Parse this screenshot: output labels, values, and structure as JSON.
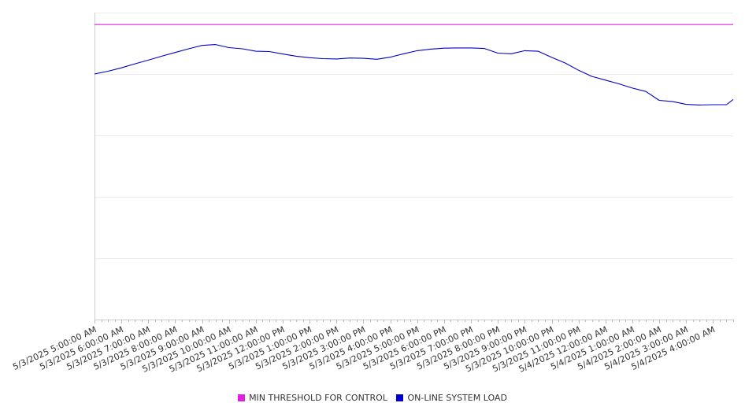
{
  "chart_data": {
    "type": "line",
    "x_unit": "hour",
    "x_range": [
      "5/3/2025 5:00:00 AM",
      "5/4/2025 4:45:00 AM"
    ],
    "xtick_labels": [
      "5/3/2025 5:00:00 AM",
      "5/3/2025 6:00:00 AM",
      "5/3/2025 7:00:00 AM",
      "5/3/2025 8:00:00 AM",
      "5/3/2025 9:00:00 AM",
      "5/3/2025 10:00:00 AM",
      "5/3/2025 11:00:00 AM",
      "5/3/2025 12:00:00 PM",
      "5/3/2025 1:00:00 PM",
      "5/3/2025 2:00:00 PM",
      "5/3/2025 3:00:00 PM",
      "5/3/2025 4:00:00 PM",
      "5/3/2025 5:00:00 PM",
      "5/3/2025 6:00:00 PM",
      "5/3/2025 7:00:00 PM",
      "5/3/2025 8:00:00 PM",
      "5/3/2025 9:00:00 PM",
      "5/3/2025 10:00:00 PM",
      "5/3/2025 11:00:00 PM",
      "5/4/2025 12:00:00 AM",
      "5/4/2025 1:00:00 AM",
      "5/4/2025 2:00:00 AM",
      "5/4/2025 3:00:00 AM",
      "5/4/2025 4:00:00 AM"
    ],
    "ylim": [
      0,
      1000
    ],
    "y_gridlines": [
      200,
      400,
      600,
      800,
      1000
    ],
    "y_tick_labels_visible": false,
    "grid": true,
    "legend_position": "bottom-center",
    "series": [
      {
        "name": "MIN THRESHOLD FOR CONTROL",
        "color": "#e020e0",
        "x": [
          "5/3/2025 5:00:00 AM",
          "5/4/2025 4:45:00 AM"
        ],
        "values": [
          961,
          961
        ]
      },
      {
        "name": "ON-LINE SYSTEM LOAD",
        "color": "#0000cc",
        "x": [
          "5/3/2025 5:00:00 AM",
          "5/3/2025 5:30:00 AM",
          "5/3/2025 6:00:00 AM",
          "5/3/2025 6:30:00 AM",
          "5/3/2025 7:00:00 AM",
          "5/3/2025 7:30:00 AM",
          "5/3/2025 8:00:00 AM",
          "5/3/2025 8:30:00 AM",
          "5/3/2025 9:00:00 AM",
          "5/3/2025 9:30:00 AM",
          "5/3/2025 10:00:00 AM",
          "5/3/2025 10:30:00 AM",
          "5/3/2025 11:00:00 AM",
          "5/3/2025 11:30:00 AM",
          "5/3/2025 12:00:00 PM",
          "5/3/2025 12:30:00 PM",
          "5/3/2025 1:00:00 PM",
          "5/3/2025 1:30:00 PM",
          "5/3/2025 2:00:00 PM",
          "5/3/2025 2:30:00 PM",
          "5/3/2025 3:00:00 PM",
          "5/3/2025 3:30:00 PM",
          "5/3/2025 4:00:00 PM",
          "5/3/2025 4:30:00 PM",
          "5/3/2025 5:00:00 PM",
          "5/3/2025 5:30:00 PM",
          "5/3/2025 6:00:00 PM",
          "5/3/2025 6:30:00 PM",
          "5/3/2025 7:00:00 PM",
          "5/3/2025 7:30:00 PM",
          "5/3/2025 8:00:00 PM",
          "5/3/2025 8:30:00 PM",
          "5/3/2025 9:00:00 PM",
          "5/3/2025 9:30:00 PM",
          "5/3/2025 10:00:00 PM",
          "5/3/2025 10:30:00 PM",
          "5/3/2025 11:00:00 PM",
          "5/3/2025 11:30:00 PM",
          "5/4/2025 12:00:00 AM",
          "5/4/2025 12:30:00 AM",
          "5/4/2025 1:00:00 AM",
          "5/4/2025 1:30:00 AM",
          "5/4/2025 2:00:00 AM",
          "5/4/2025 2:30:00 AM",
          "5/4/2025 3:00:00 AM",
          "5/4/2025 3:30:00 AM",
          "5/4/2025 4:00:00 AM",
          "5/4/2025 4:30:00 AM",
          "5/4/2025 4:45:00 AM"
        ],
        "values": [
          800,
          809,
          820,
          833,
          845,
          858,
          870,
          882,
          893,
          896,
          886,
          882,
          874,
          873,
          865,
          858,
          853,
          850,
          849,
          852,
          851,
          848,
          855,
          866,
          876,
          881,
          884,
          885,
          885,
          883,
          868,
          866,
          876,
          874,
          854,
          836,
          812,
          792,
          780,
          768,
          754,
          743,
          714,
          710,
          701,
          699,
          700,
          700,
          717
        ]
      }
    ]
  }
}
